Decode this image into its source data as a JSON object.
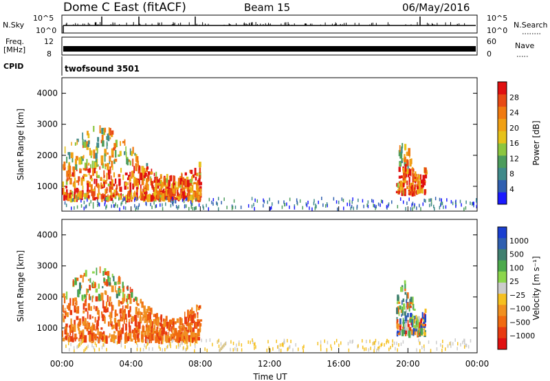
{
  "header": {
    "station": "Dome C East (fitACF)",
    "beam": "Beam 15",
    "date": "06/May/2016"
  },
  "top_panels": {
    "nsky_label": "N.Sky",
    "nsky_ticks": [
      "10^5",
      "10^0"
    ],
    "nsearch_label": "N.Search",
    "nsearch_ticks": [
      "10^5",
      "10^0"
    ],
    "freq_label": "Freq.",
    "freq_unit": "[MHz]",
    "freq_ticks": [
      "12",
      "8"
    ],
    "nave_label": "Nave",
    "nave_ticks": [
      "60",
      "0"
    ],
    "cpid_label": "CPID",
    "cpid_value": "twofsound  3501"
  },
  "chart_data": [
    {
      "type": "heatmap",
      "panel": "power",
      "ylabel": "Slant Range [km]",
      "ylim": [
        200,
        4500
      ],
      "yticks": [
        1000,
        2000,
        3000,
        4000
      ],
      "xlim": [
        0,
        24
      ],
      "colorbar": {
        "label": "Power [dB]",
        "ticks": [
          "4",
          "8",
          "12",
          "16",
          "20",
          "24",
          "28"
        ],
        "colors": [
          "#1a1aff",
          "#2f5fb0",
          "#3f8a8a",
          "#4c9c5c",
          "#8cc63f",
          "#e6c21a",
          "#f0a014",
          "#f07a10",
          "#e84a14",
          "#e01010"
        ]
      },
      "regions": [
        {
          "t_start": 0.0,
          "t_end": 8.0,
          "range_min": 600,
          "range_max": 2900,
          "level": "high"
        },
        {
          "t_start": 19.3,
          "t_end": 21.0,
          "range_min": 800,
          "range_max": 2500,
          "level": "high"
        }
      ]
    },
    {
      "type": "heatmap",
      "panel": "velocity",
      "ylabel": "Slant Range [km]",
      "ylim": [
        200,
        4500
      ],
      "yticks": [
        1000,
        2000,
        3000,
        4000
      ],
      "xlim": [
        0,
        24
      ],
      "xticks": [
        "00:00",
        "04:00",
        "08:00",
        "12:00",
        "16:00",
        "20:00",
        "00:00"
      ],
      "xlabel": "Time UT",
      "colorbar": {
        "label": "Velocity  [m s⁻¹]",
        "ticks": [
          "1000",
          "500",
          "100",
          "25",
          "−25",
          "−100",
          "−500",
          "−1000"
        ],
        "colors": [
          "#1a3fd0",
          "#2f5fb0",
          "#3f7f6f",
          "#4caa4c",
          "#8cd64c",
          "#cccccc",
          "#f5c020",
          "#f09020",
          "#f06a10",
          "#e83a10",
          "#e01010"
        ]
      },
      "regions": [
        {
          "t_start": 0.0,
          "t_end": 8.0,
          "range_min": 600,
          "range_max": 2900,
          "level": "negative"
        },
        {
          "t_start": 19.3,
          "t_end": 21.0,
          "range_min": 800,
          "range_max": 2500,
          "level": "mixed"
        }
      ]
    }
  ]
}
